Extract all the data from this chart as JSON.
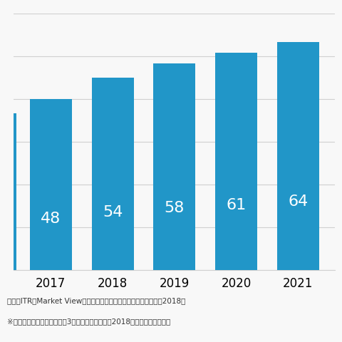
{
  "years_visible": [
    "2017",
    "2018",
    "2019",
    "2020",
    "2021"
  ],
  "values_visible": [
    48,
    54,
    58,
    61,
    64
  ],
  "value_2016": 44,
  "bar_color": "#2196c8",
  "label_color": "#ffffff",
  "label_fontsize": 16,
  "tick_fontsize": 12,
  "ylim": [
    0,
    72
  ],
  "yticks": [
    0,
    12,
    24,
    36,
    48,
    60,
    72
  ],
  "grid_color": "#d0d0d0",
  "bg_color": "#f8f8f8",
  "footnote1": "出所：ITR「Market View：アイデンティティ／アクセス管理市场2018」",
  "footnote2": "※国内売上金額を対象とし、3月期ベースで換算、2018年度以降は予測値。",
  "footnote_fontsize": 7.5
}
